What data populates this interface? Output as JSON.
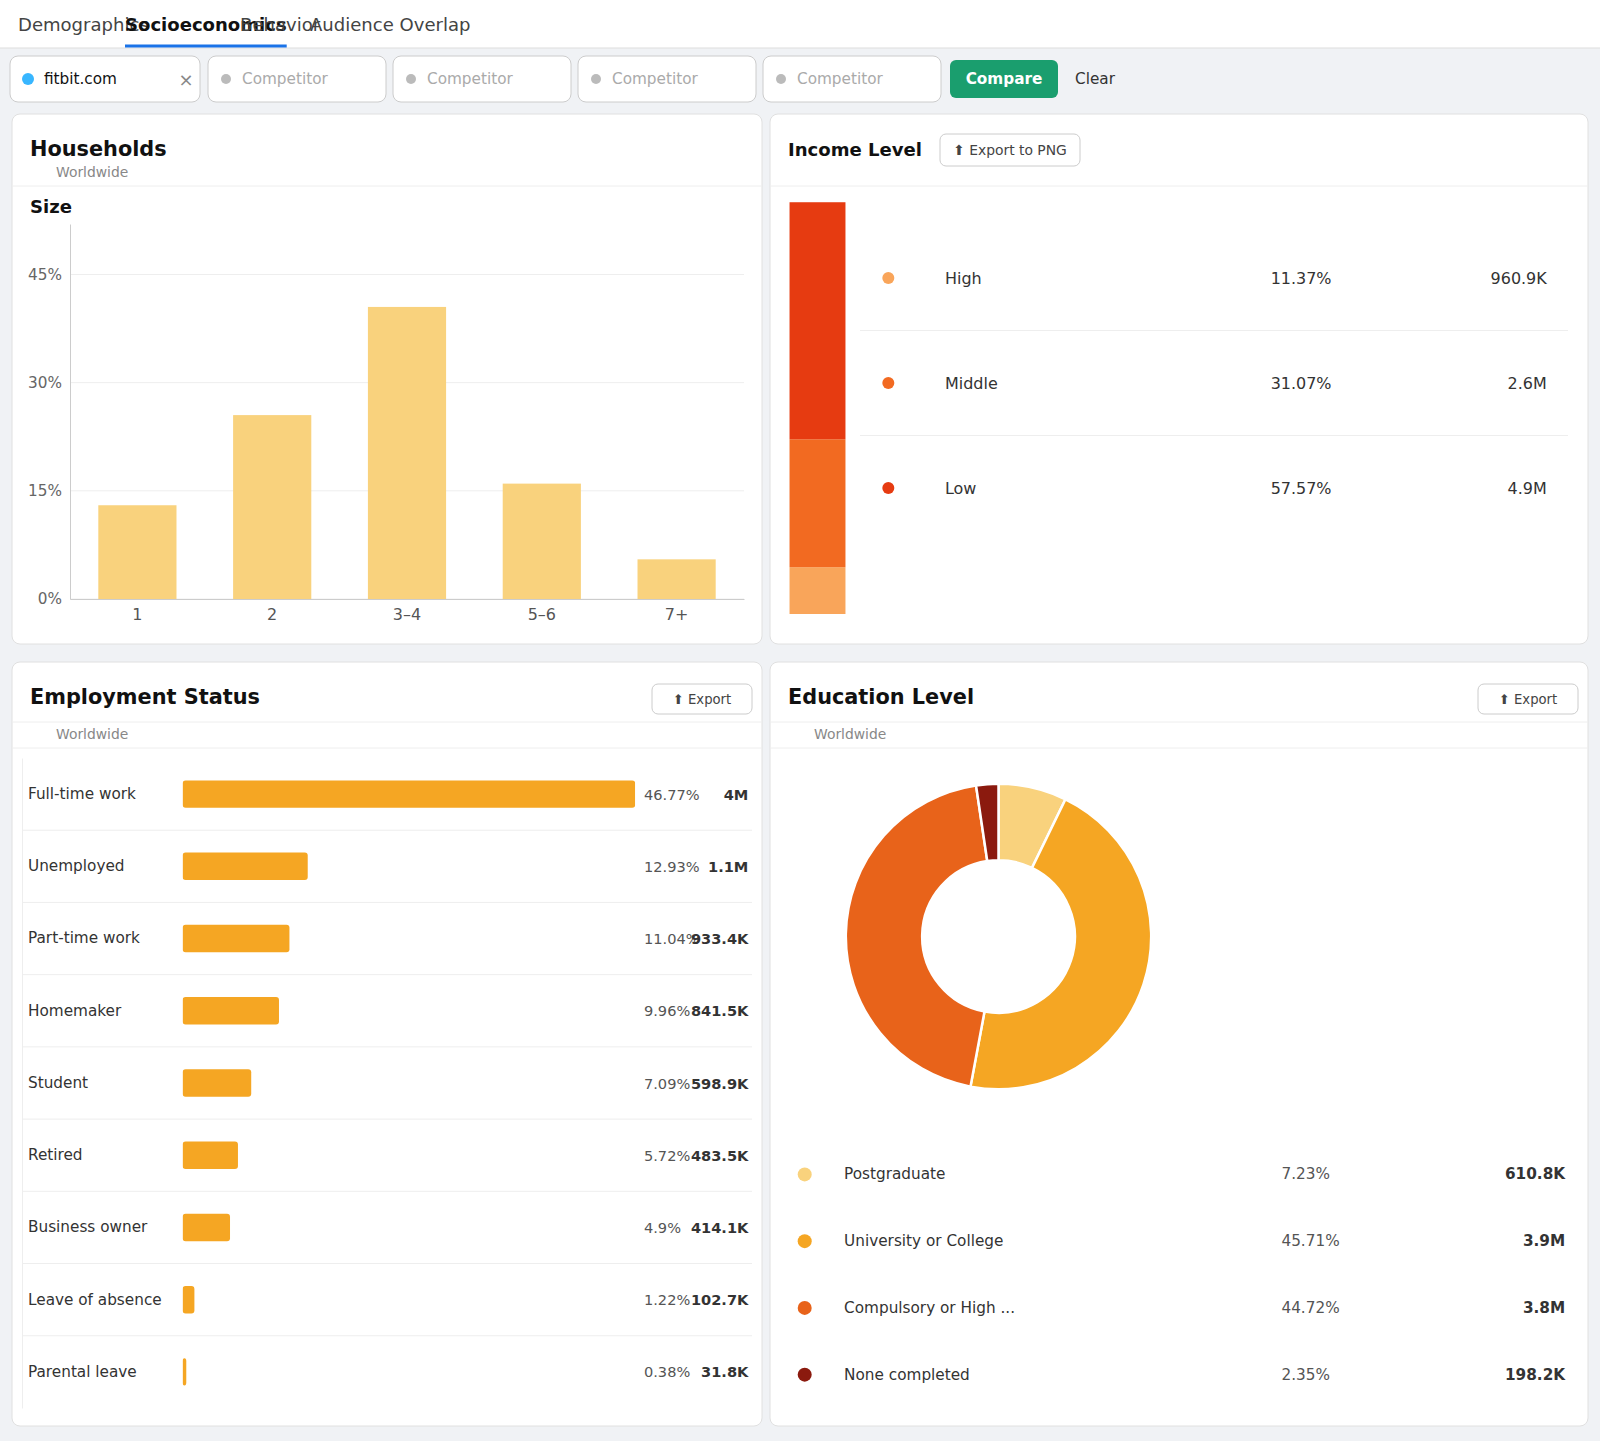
{
  "page": {
    "bg_color": "#f0f2f5",
    "tabs": [
      "Demographics",
      "Socioeconomics",
      "Behavior",
      "Audience Overlap"
    ],
    "active_tab": "Socioeconomics",
    "tab_active_color": "#1a73e8",
    "filters": [
      "fitbit.com",
      "Competitor",
      "Competitor",
      "Competitor",
      "Competitor"
    ],
    "fitbit_dot_color": "#38b6ff",
    "close": "×",
    "buttons": [
      "Compare",
      "Clear"
    ],
    "compare_color": "#1a9e6e",
    "exports": [
      "⬆ Export to PNG",
      "⬆ Export",
      "⬆ Export"
    ]
  },
  "chart_data": [
    {
      "type": "bar",
      "title": "Households",
      "subtitle": "Size",
      "annotations": [
        "Worldwide"
      ],
      "categories": [
        "1",
        "2",
        "3–4",
        "5–6",
        "7+"
      ],
      "values": [
        13.0,
        25.5,
        40.5,
        16.0,
        5.5
      ],
      "color": "#f9d27d",
      "ylim": [
        0,
        52
      ],
      "yticks": [
        {
          "value": 0,
          "label": "0%"
        },
        {
          "value": 15,
          "label": "15%"
        },
        {
          "value": 30,
          "label": "30%"
        },
        {
          "value": 45,
          "label": "45%"
        }
      ],
      "grid": true
    },
    {
      "type": "bar",
      "title": "Income Level",
      "stacked": true,
      "data_labels": true,
      "tick_labels": false,
      "ylim": [
        0,
        102.0102
      ],
      "series": [
        {
          "name": "High",
          "color": "#f9a55a",
          "values": [
            11.37
          ],
          "value_labels": [
            "11.37%"
          ],
          "count_labels": [
            "960.9K"
          ]
        },
        {
          "name": "Middle",
          "color": "#f26a21",
          "values": [
            31.07
          ],
          "value_labels": [
            "31.07%"
          ],
          "count_labels": [
            "2.6M"
          ]
        },
        {
          "name": "Low",
          "color": "#e63b11",
          "values": [
            57.57
          ],
          "value_labels": [
            "57.57%"
          ],
          "count_labels": [
            "4.9M"
          ]
        }
      ]
    },
    {
      "type": "bar",
      "orientation": "horizontal",
      "title": "Employment Status",
      "annotations": [
        "Worldwide"
      ],
      "categories": [
        "Full-time work",
        "Unemployed",
        "Part-time work",
        "Homemaker",
        "Student",
        "Retired",
        "Business owner",
        "Leave of absence",
        "Parental leave"
      ],
      "values": [
        46.77,
        12.93,
        11.04,
        9.96,
        7.09,
        5.72,
        4.9,
        1.22,
        0.38
      ],
      "value_labels": [
        "46.77%",
        "12.93%",
        "11.04%",
        "9.96%",
        "7.09%",
        "5.72%",
        "4.9%",
        "1.22%",
        "0.38%"
      ],
      "count_labels": [
        "4M",
        "1.1M",
        "933.4K",
        "841.5K",
        "598.9K",
        "483.5K",
        "414.1K",
        "102.7K",
        "31.8K"
      ],
      "color": "#f5a623",
      "xlim": [
        0,
        46.77
      ],
      "data_labels": true,
      "tick_labels": "y"
    },
    {
      "type": "donut",
      "title": "Education Level",
      "annotations": [
        "Worldwide"
      ],
      "categories": [
        "Postgraduate",
        "University or College",
        "Compulsory or High ...",
        "None completed"
      ],
      "values": [
        7.23,
        45.71,
        44.72,
        2.35
      ],
      "value_labels": [
        "7.23%",
        "45.71%",
        "44.72%",
        "2.35%"
      ],
      "count_labels": [
        "610.8K",
        "3.9M",
        "3.8M",
        "198.2K"
      ],
      "colors": [
        "#f9d27d",
        "#f5a623",
        "#e8631a",
        "#8b1a0e"
      ],
      "data_labels": true
    }
  ]
}
